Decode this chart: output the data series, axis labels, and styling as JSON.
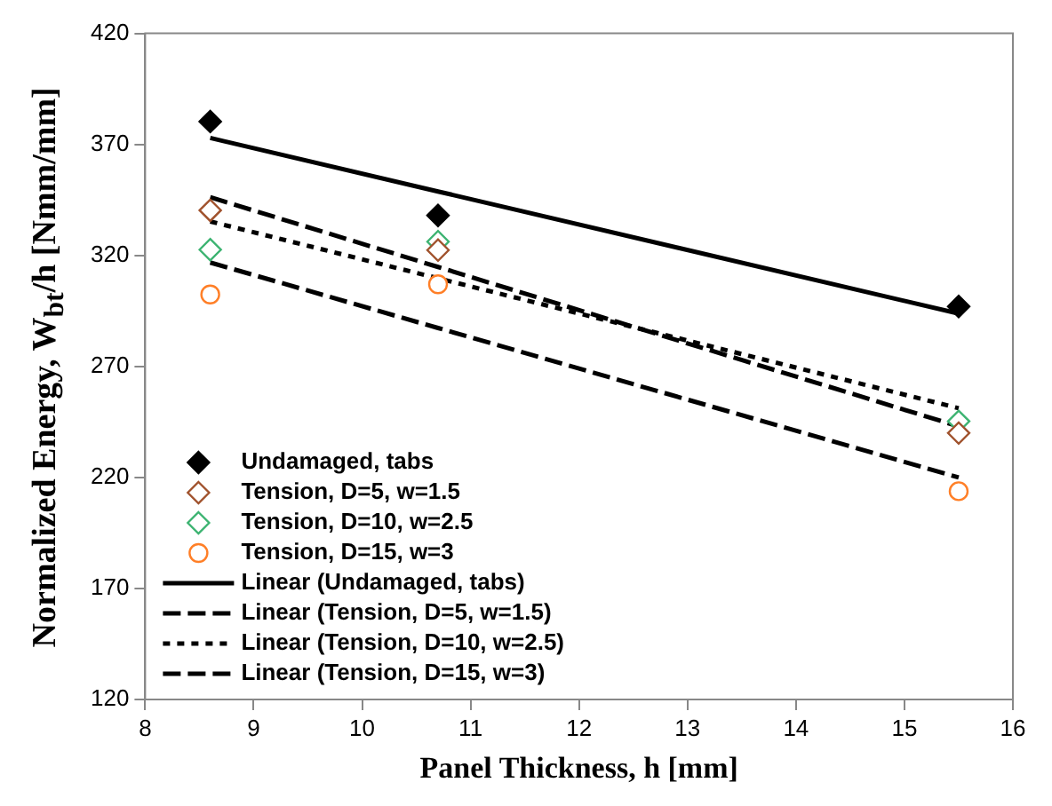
{
  "chart_data": {
    "type": "scatter",
    "xlabel": "Panel Thickness, h [mm]",
    "ylabel": "Normalized Energy, W$_{bt}$/h [Nmm/mm]",
    "xlim": [
      8,
      16
    ],
    "xticks": [
      8,
      9,
      10,
      11,
      12,
      13,
      14,
      15,
      16
    ],
    "ylim": [
      120,
      420
    ],
    "yticks": [
      120,
      170,
      220,
      270,
      320,
      370,
      420
    ],
    "grid": false,
    "legend": "bottom left",
    "x": [
      8.6,
      10.7,
      15.5
    ],
    "series": [
      {
        "name": "Undamaged, tabs",
        "marker": "diamond",
        "color": "#000000",
        "values": [
          380.3,
          338,
          297
        ]
      },
      {
        "name": "Tension, D=5, w=1.5",
        "type": "scatter",
        "marker": "diamond",
        "color": "#a0522d",
        "values": [
          340.3,
          322.4,
          240
        ]
      },
      {
        "name": "Tension, D=10, w=2.5",
        "type": "scatter",
        "marker": "diamond",
        "color": "#3cb371",
        "values": [
          322.6,
          326.2,
          245.3
        ]
      },
      {
        "name": "Tension, D=15, w=3",
        "type": "scatter",
        "marker": "circle",
        "color": "#ff7f27",
        "values": [
          302.4,
          307,
          213.8
        ]
      },
      {
        "name": "Linear (Undamaged, tabs)",
        "type": "line",
        "line_style": "solid",
        "color": "#000000",
        "values": [
          372.9,
          348.8,
          293.8
        ]
      },
      {
        "name": "Linear (Tension, D=5, w=1.5)",
        "type": "line",
        "line_style": "dashed",
        "color": "#000000",
        "values": [
          346.2,
          314.8,
          243
        ]
      },
      {
        "name": "Linear (Tension, D=10, w=2.5)",
        "type": "line",
        "line_style": "dotted",
        "color": "#000000",
        "values": [
          335.3,
          309.7,
          251.2
        ]
      },
      {
        "name": "Linear (Tension, D=15, w=3)",
        "type": "line",
        "line_style": "dashed",
        "color": "#000000",
        "values": [
          316.8,
          287.3,
          220
        ]
      }
    ]
  }
}
